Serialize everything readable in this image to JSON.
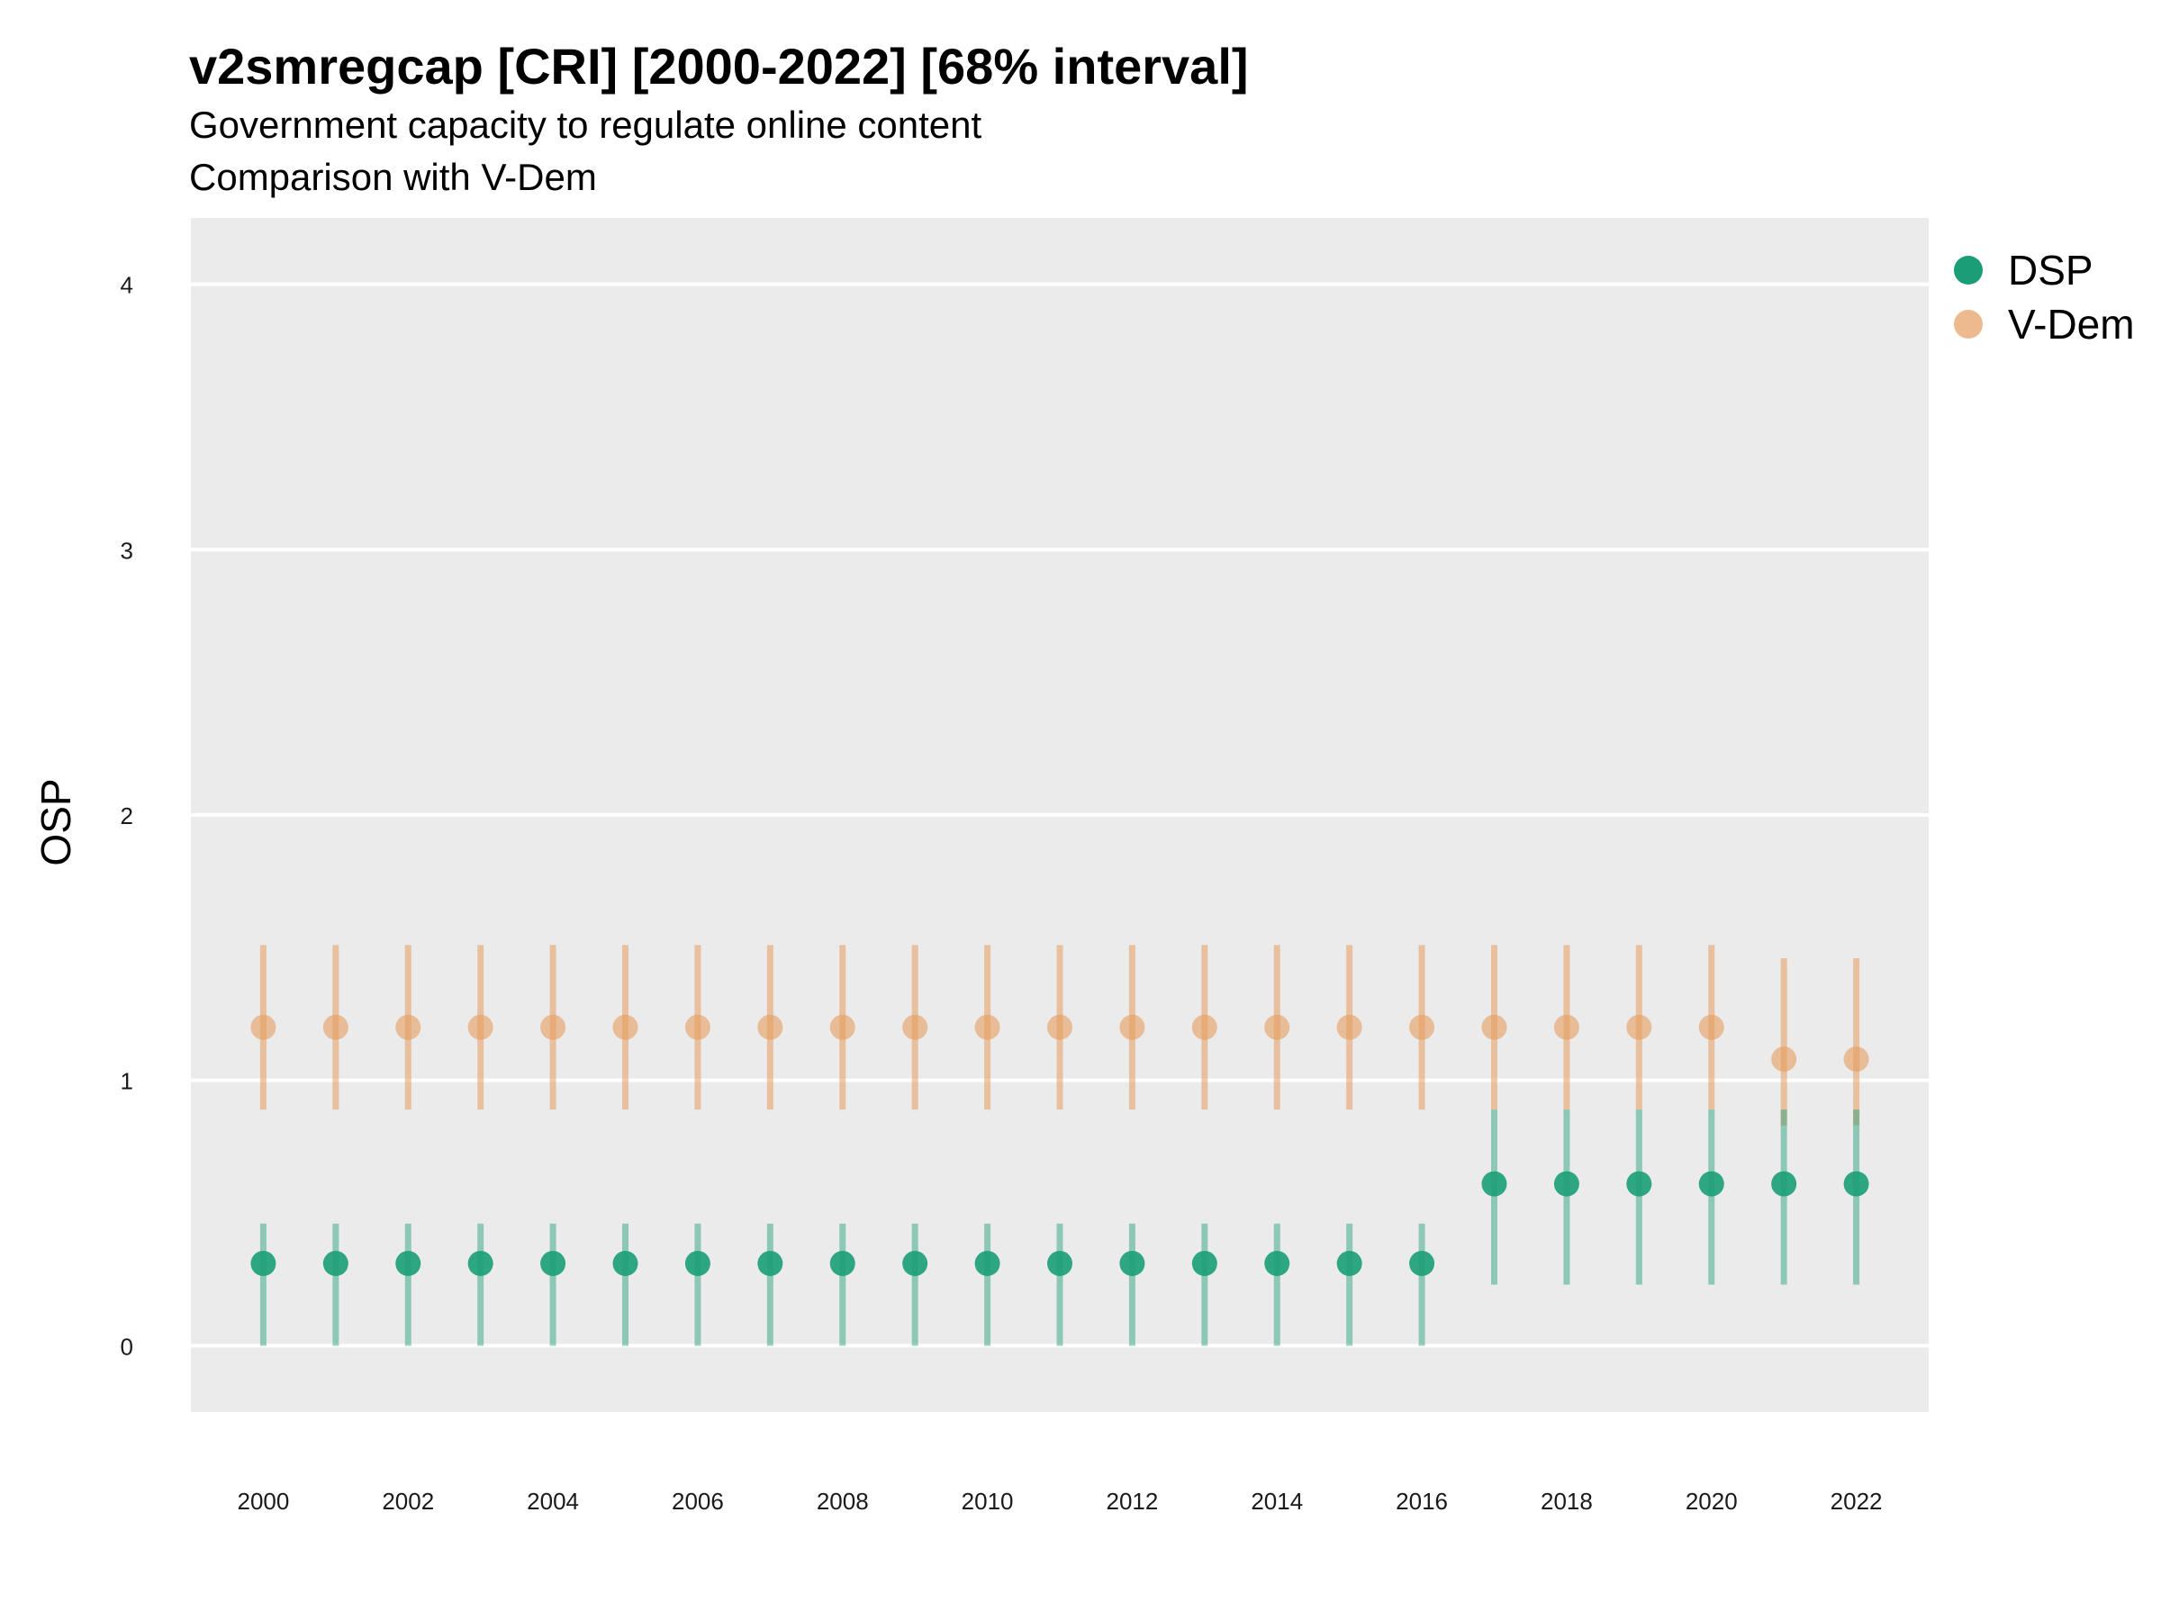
{
  "title": "v2smregcap [CRI] [2000-2022] [68% interval]",
  "subtitle_line1": "Government capacity to regulate online content",
  "subtitle_line2": "Comparison with V-Dem",
  "colors": {
    "dsp": "#1b9e77",
    "vdem": "#e69d5f",
    "panel": "#ebebeb",
    "grid": "#ffffff"
  },
  "chart_data": {
    "type": "scatter",
    "ylabel": "OSP",
    "xlabel": "",
    "ylim": [
      -0.25,
      4.25
    ],
    "yticks": [
      0,
      1,
      2,
      3,
      4
    ],
    "xlim": [
      1999,
      2023
    ],
    "xticks": [
      2000,
      2002,
      2004,
      2006,
      2008,
      2010,
      2012,
      2014,
      2016,
      2018,
      2020,
      2022
    ],
    "grid": true,
    "legend_position": "top-right",
    "x": [
      2000,
      2001,
      2002,
      2003,
      2004,
      2005,
      2006,
      2007,
      2008,
      2009,
      2010,
      2011,
      2012,
      2013,
      2014,
      2015,
      2016,
      2017,
      2018,
      2019,
      2020,
      2021,
      2022
    ],
    "series": [
      {
        "name": "DSP",
        "values": [
          0.31,
          0.31,
          0.31,
          0.31,
          0.31,
          0.31,
          0.31,
          0.31,
          0.31,
          0.31,
          0.31,
          0.31,
          0.31,
          0.31,
          0.31,
          0.31,
          0.31,
          0.61,
          0.61,
          0.61,
          0.61,
          0.61,
          0.61
        ],
        "lower": [
          0.0,
          0.0,
          0.0,
          0.0,
          0.0,
          0.0,
          0.0,
          0.0,
          0.0,
          0.0,
          0.0,
          0.0,
          0.0,
          0.0,
          0.0,
          0.0,
          0.0,
          0.23,
          0.23,
          0.23,
          0.23,
          0.23,
          0.23
        ],
        "upper": [
          0.46,
          0.46,
          0.46,
          0.46,
          0.46,
          0.46,
          0.46,
          0.46,
          0.46,
          0.46,
          0.46,
          0.46,
          0.46,
          0.46,
          0.46,
          0.46,
          0.46,
          0.89,
          0.89,
          0.89,
          0.89,
          0.89,
          0.89
        ]
      },
      {
        "name": "V-Dem",
        "values": [
          1.2,
          1.2,
          1.2,
          1.2,
          1.2,
          1.2,
          1.2,
          1.2,
          1.2,
          1.2,
          1.2,
          1.2,
          1.2,
          1.2,
          1.2,
          1.2,
          1.2,
          1.2,
          1.2,
          1.2,
          1.2,
          1.08,
          1.08
        ],
        "lower": [
          0.89,
          0.89,
          0.89,
          0.89,
          0.89,
          0.89,
          0.89,
          0.89,
          0.89,
          0.89,
          0.89,
          0.89,
          0.89,
          0.89,
          0.89,
          0.89,
          0.89,
          0.89,
          0.89,
          0.89,
          0.89,
          0.83,
          0.83
        ],
        "upper": [
          1.51,
          1.51,
          1.51,
          1.51,
          1.51,
          1.51,
          1.51,
          1.51,
          1.51,
          1.51,
          1.51,
          1.51,
          1.51,
          1.51,
          1.51,
          1.51,
          1.51,
          1.51,
          1.51,
          1.51,
          1.51,
          1.46,
          1.46
        ]
      }
    ]
  }
}
